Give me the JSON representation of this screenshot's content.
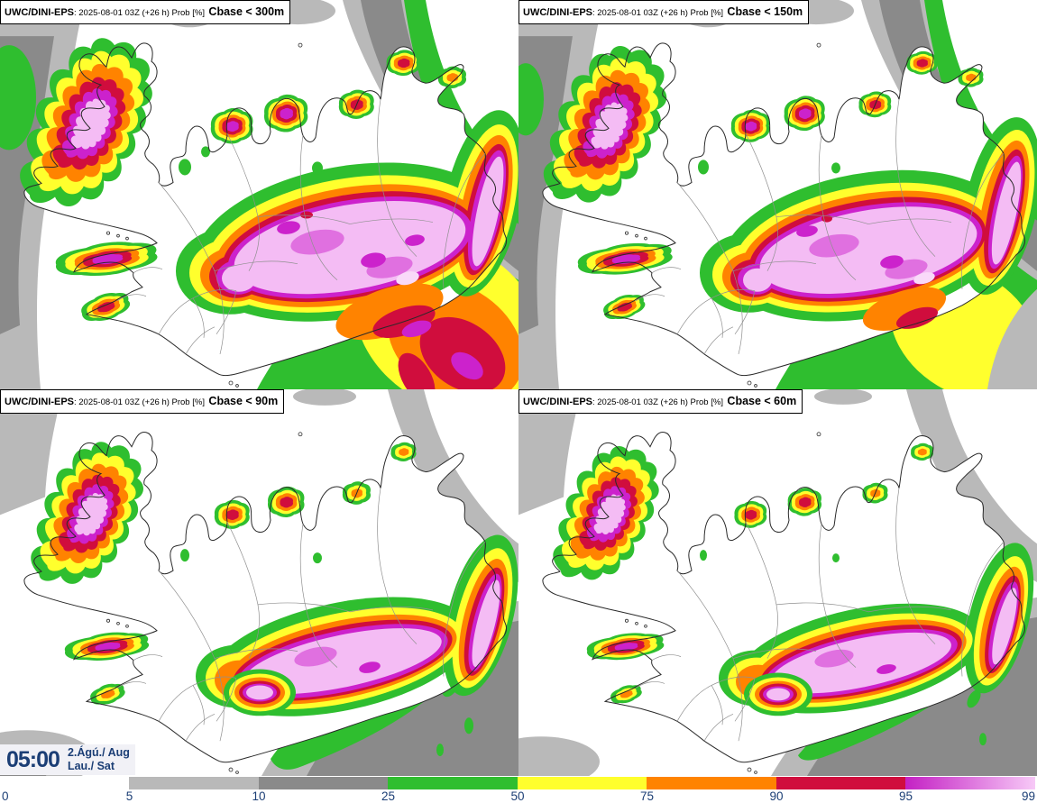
{
  "panels": [
    {
      "id": "cbase-300m",
      "model": "UWC/DINI-EPS",
      "run": ": 2025-08-01 03Z (+26 h) Prob [%]",
      "threshold": "Cbase < 300m"
    },
    {
      "id": "cbase-150m",
      "model": "UWC/DINI-EPS",
      "run": ": 2025-08-01 03Z (+26 h) Prob [%]",
      "threshold": "Cbase < 150m"
    },
    {
      "id": "cbase-90m",
      "model": "UWC/DINI-EPS",
      "run": ": 2025-08-01 03Z (+26 h) Prob [%]",
      "threshold": "Cbase < 90m"
    },
    {
      "id": "cbase-60m",
      "model": "UWC/DINI-EPS",
      "run": ": 2025-08-01 03Z (+26 h) Prob [%]",
      "threshold": "Cbase < 60m"
    }
  ],
  "clock": {
    "time": "05:00",
    "date": "2.Ágú./ Aug",
    "day": "Lau./ Sat"
  },
  "legend": {
    "unit": "Prob [%]",
    "ticks": [
      "0",
      "5",
      "10",
      "25",
      "50",
      "75",
      "90",
      "95",
      "99"
    ],
    "segments": [
      {
        "range": "5-10",
        "color": "#b9b9b9"
      },
      {
        "range": "10-25",
        "color": "#8a8a8a"
      },
      {
        "range": "25-50",
        "color": "#2fbe2f"
      },
      {
        "range": "50-75",
        "color": "#ffff2d"
      },
      {
        "range": "75-90",
        "color": "#ff8300"
      },
      {
        "range": "90-95",
        "color": "#d00d3d"
      },
      {
        "range": "95-99",
        "gradient": [
          "#c421c4",
          "#f7c9f7"
        ]
      }
    ]
  },
  "palette": {
    "sea": "#ffffff",
    "grayl": "#b9b9b9",
    "grayd": "#8a8a8a",
    "green": "#2fbe2f",
    "yellow": "#ffff2d",
    "orange": "#ff8300",
    "red": "#d00d3d",
    "magenta": "#cc22cc",
    "orchid": "#e070e0",
    "pink": "#f4bcf4",
    "pinkpale": "#f9d9f9",
    "coast": "#2a2a2a",
    "boundary": "#909090",
    "navy": "#1b3e75",
    "boxbg": "#f1f1f6"
  }
}
